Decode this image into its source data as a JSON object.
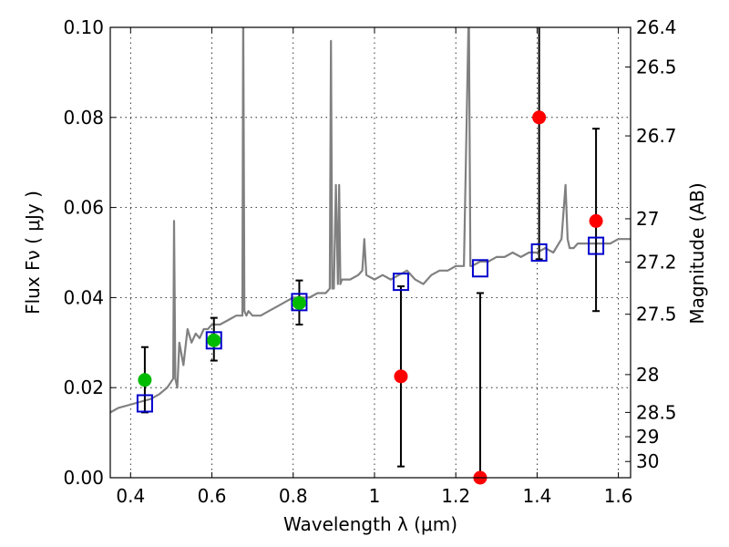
{
  "chart_data": {
    "type": "scatter",
    "xlabel": "Wavelength  λ (μm)",
    "ylabel": "Flux  Fν  ( μJy )",
    "ylabel_right": "Magnitude (AB)",
    "xlim": [
      0.35,
      1.63
    ],
    "ylim": [
      0.0,
      0.1
    ],
    "x_ticks": [
      0.4,
      0.6,
      0.8,
      1.0,
      1.2,
      1.4,
      1.6
    ],
    "x_tick_labels": [
      "0.4",
      "0.6",
      "0.8",
      "1",
      "1.2",
      "1.4",
      "1.6"
    ],
    "y_ticks": [
      0.0,
      0.02,
      0.04,
      0.06,
      0.08,
      0.1
    ],
    "y_tick_labels": [
      "0.00",
      "0.02",
      "0.04",
      "0.06",
      "0.08",
      "0.10"
    ],
    "right_ticks": [
      {
        "label": "26.4",
        "flux": 0.1
      },
      {
        "label": "26.5",
        "flux": 0.0912
      },
      {
        "label": "26.7",
        "flux": 0.0759
      },
      {
        "label": "27",
        "flux": 0.0575
      },
      {
        "label": "27.2",
        "flux": 0.0479
      },
      {
        "label": "27.5",
        "flux": 0.0363
      },
      {
        "label": "28",
        "flux": 0.0229
      },
      {
        "label": "28.5",
        "flux": 0.0145
      },
      {
        "label": "29",
        "flux": 0.0091
      },
      {
        "label": "30",
        "flux": 0.0036
      }
    ],
    "grid": true,
    "series": [
      {
        "style": "line",
        "color": "#808080",
        "x": [
          0.35,
          0.37,
          0.39,
          0.41,
          0.43,
          0.45,
          0.47,
          0.49,
          0.505,
          0.507,
          0.51,
          0.515,
          0.52,
          0.53,
          0.54,
          0.55,
          0.56,
          0.57,
          0.58,
          0.59,
          0.6,
          0.62,
          0.64,
          0.66,
          0.675,
          0.677,
          0.68,
          0.685,
          0.69,
          0.7,
          0.72,
          0.74,
          0.76,
          0.78,
          0.8,
          0.82,
          0.84,
          0.86,
          0.88,
          0.89,
          0.893,
          0.896,
          0.9,
          0.905,
          0.91,
          0.913,
          0.916,
          0.92,
          0.94,
          0.96,
          0.97,
          0.975,
          0.98,
          1.0,
          1.02,
          1.04,
          1.06,
          1.08,
          1.1,
          1.12,
          1.14,
          1.16,
          1.18,
          1.2,
          1.22,
          1.232,
          1.236,
          1.24,
          1.26,
          1.28,
          1.3,
          1.32,
          1.34,
          1.36,
          1.38,
          1.4,
          1.42,
          1.44,
          1.46,
          1.47,
          1.475,
          1.48,
          1.49,
          1.5,
          1.52,
          1.54,
          1.56,
          1.58,
          1.6,
          1.63
        ],
        "y": [
          0.0145,
          0.0155,
          0.016,
          0.0165,
          0.017,
          0.0175,
          0.0185,
          0.02,
          0.022,
          0.057,
          0.022,
          0.02,
          0.03,
          0.025,
          0.033,
          0.03,
          0.032,
          0.031,
          0.033,
          0.033,
          0.034,
          0.034,
          0.035,
          0.036,
          0.036,
          0.105,
          0.037,
          0.036,
          0.037,
          0.036,
          0.036,
          0.037,
          0.038,
          0.039,
          0.04,
          0.04,
          0.04,
          0.041,
          0.041,
          0.042,
          0.097,
          0.042,
          0.042,
          0.065,
          0.043,
          0.065,
          0.043,
          0.044,
          0.044,
          0.045,
          0.046,
          0.053,
          0.045,
          0.044,
          0.045,
          0.044,
          0.045,
          0.046,
          0.044,
          0.043,
          0.045,
          0.046,
          0.046,
          0.047,
          0.047,
          0.105,
          0.047,
          0.047,
          0.048,
          0.048,
          0.049,
          0.049,
          0.05,
          0.049,
          0.05,
          0.05,
          0.051,
          0.05,
          0.053,
          0.065,
          0.053,
          0.051,
          0.051,
          0.052,
          0.052,
          0.052,
          0.052,
          0.052,
          0.053,
          0.053
        ]
      },
      {
        "style": "marker-square-open",
        "color": "#0000cc",
        "x": [
          0.435,
          0.605,
          0.815,
          1.065,
          1.26,
          1.405,
          1.545
        ],
        "y": [
          0.0165,
          0.0305,
          0.039,
          0.0435,
          0.0465,
          0.05,
          0.0515
        ]
      },
      {
        "style": "marker-circle-filled",
        "color": "#00bb00",
        "x": [
          0.435,
          0.605,
          0.815
        ],
        "y": [
          0.0217,
          0.0305,
          0.0388
        ],
        "yerr_low": [
          0.0072,
          0.0045,
          0.0048
        ],
        "yerr_high": [
          0.0073,
          0.005,
          0.005
        ]
      },
      {
        "style": "marker-circle-filled",
        "color": "#ff0000",
        "x": [
          1.065,
          1.26,
          1.405,
          1.545
        ],
        "y": [
          0.0225,
          0.0,
          0.08,
          0.057
        ],
        "yerr_low": [
          0.02,
          0.0,
          0.0315,
          0.02
        ],
        "yerr_high": [
          0.02,
          0.041,
          0.03,
          0.0205
        ]
      }
    ]
  }
}
